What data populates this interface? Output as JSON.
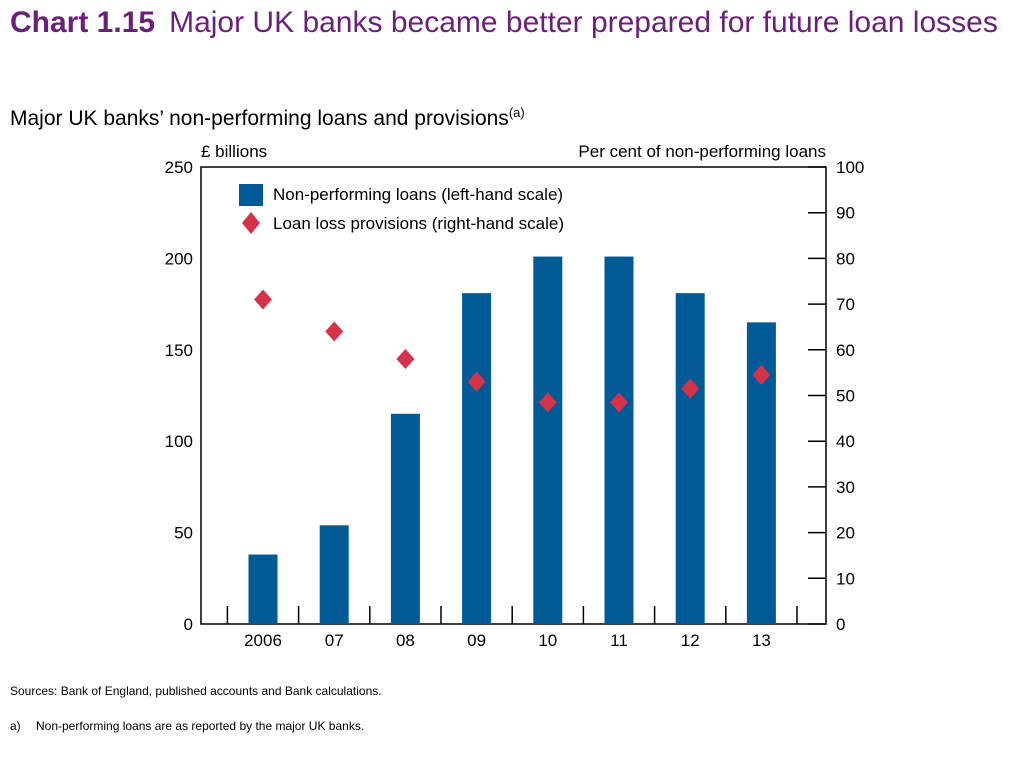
{
  "title": {
    "number": "Chart 1.15",
    "text": "Major UK banks became better prepared for future loan losses"
  },
  "subtitle": {
    "text": "Major UK banks’ non-performing loans and provisions",
    "note_marker": "(a)"
  },
  "chart_data": {
    "type": "bar",
    "categories": [
      "2006",
      "07",
      "08",
      "09",
      "10",
      "11",
      "12",
      "13"
    ],
    "series": [
      {
        "name": "Non-performing loans (left-hand scale)",
        "kind": "bar",
        "axis": "left",
        "color": "#005a96",
        "values": [
          38,
          54,
          115,
          181,
          201,
          201,
          181,
          165
        ]
      },
      {
        "name": "Loan loss provisions (right-hand scale)",
        "kind": "diamond",
        "axis": "right",
        "color": "#d6334a",
        "values": [
          71,
          64,
          58,
          53,
          48.5,
          48.5,
          51.5,
          54.5
        ]
      }
    ],
    "left_axis": {
      "label": "£ billions",
      "ylim": [
        0,
        250
      ],
      "ticks": [
        "0",
        "50",
        "100",
        "150",
        "200",
        "250"
      ]
    },
    "right_axis": {
      "label": "Per cent of non-performing loans",
      "ylim": [
        0,
        100
      ],
      "ticks": [
        "0",
        "10",
        "20",
        "30",
        "40",
        "50",
        "60",
        "70",
        "80",
        "90",
        "100"
      ]
    },
    "legend": "top-left",
    "grid": false
  },
  "sources": "Sources:  Bank of England, published accounts and Bank calculations.",
  "footnote": {
    "marker": "a)",
    "text": "Non-performing loans are as reported by the major UK banks."
  }
}
